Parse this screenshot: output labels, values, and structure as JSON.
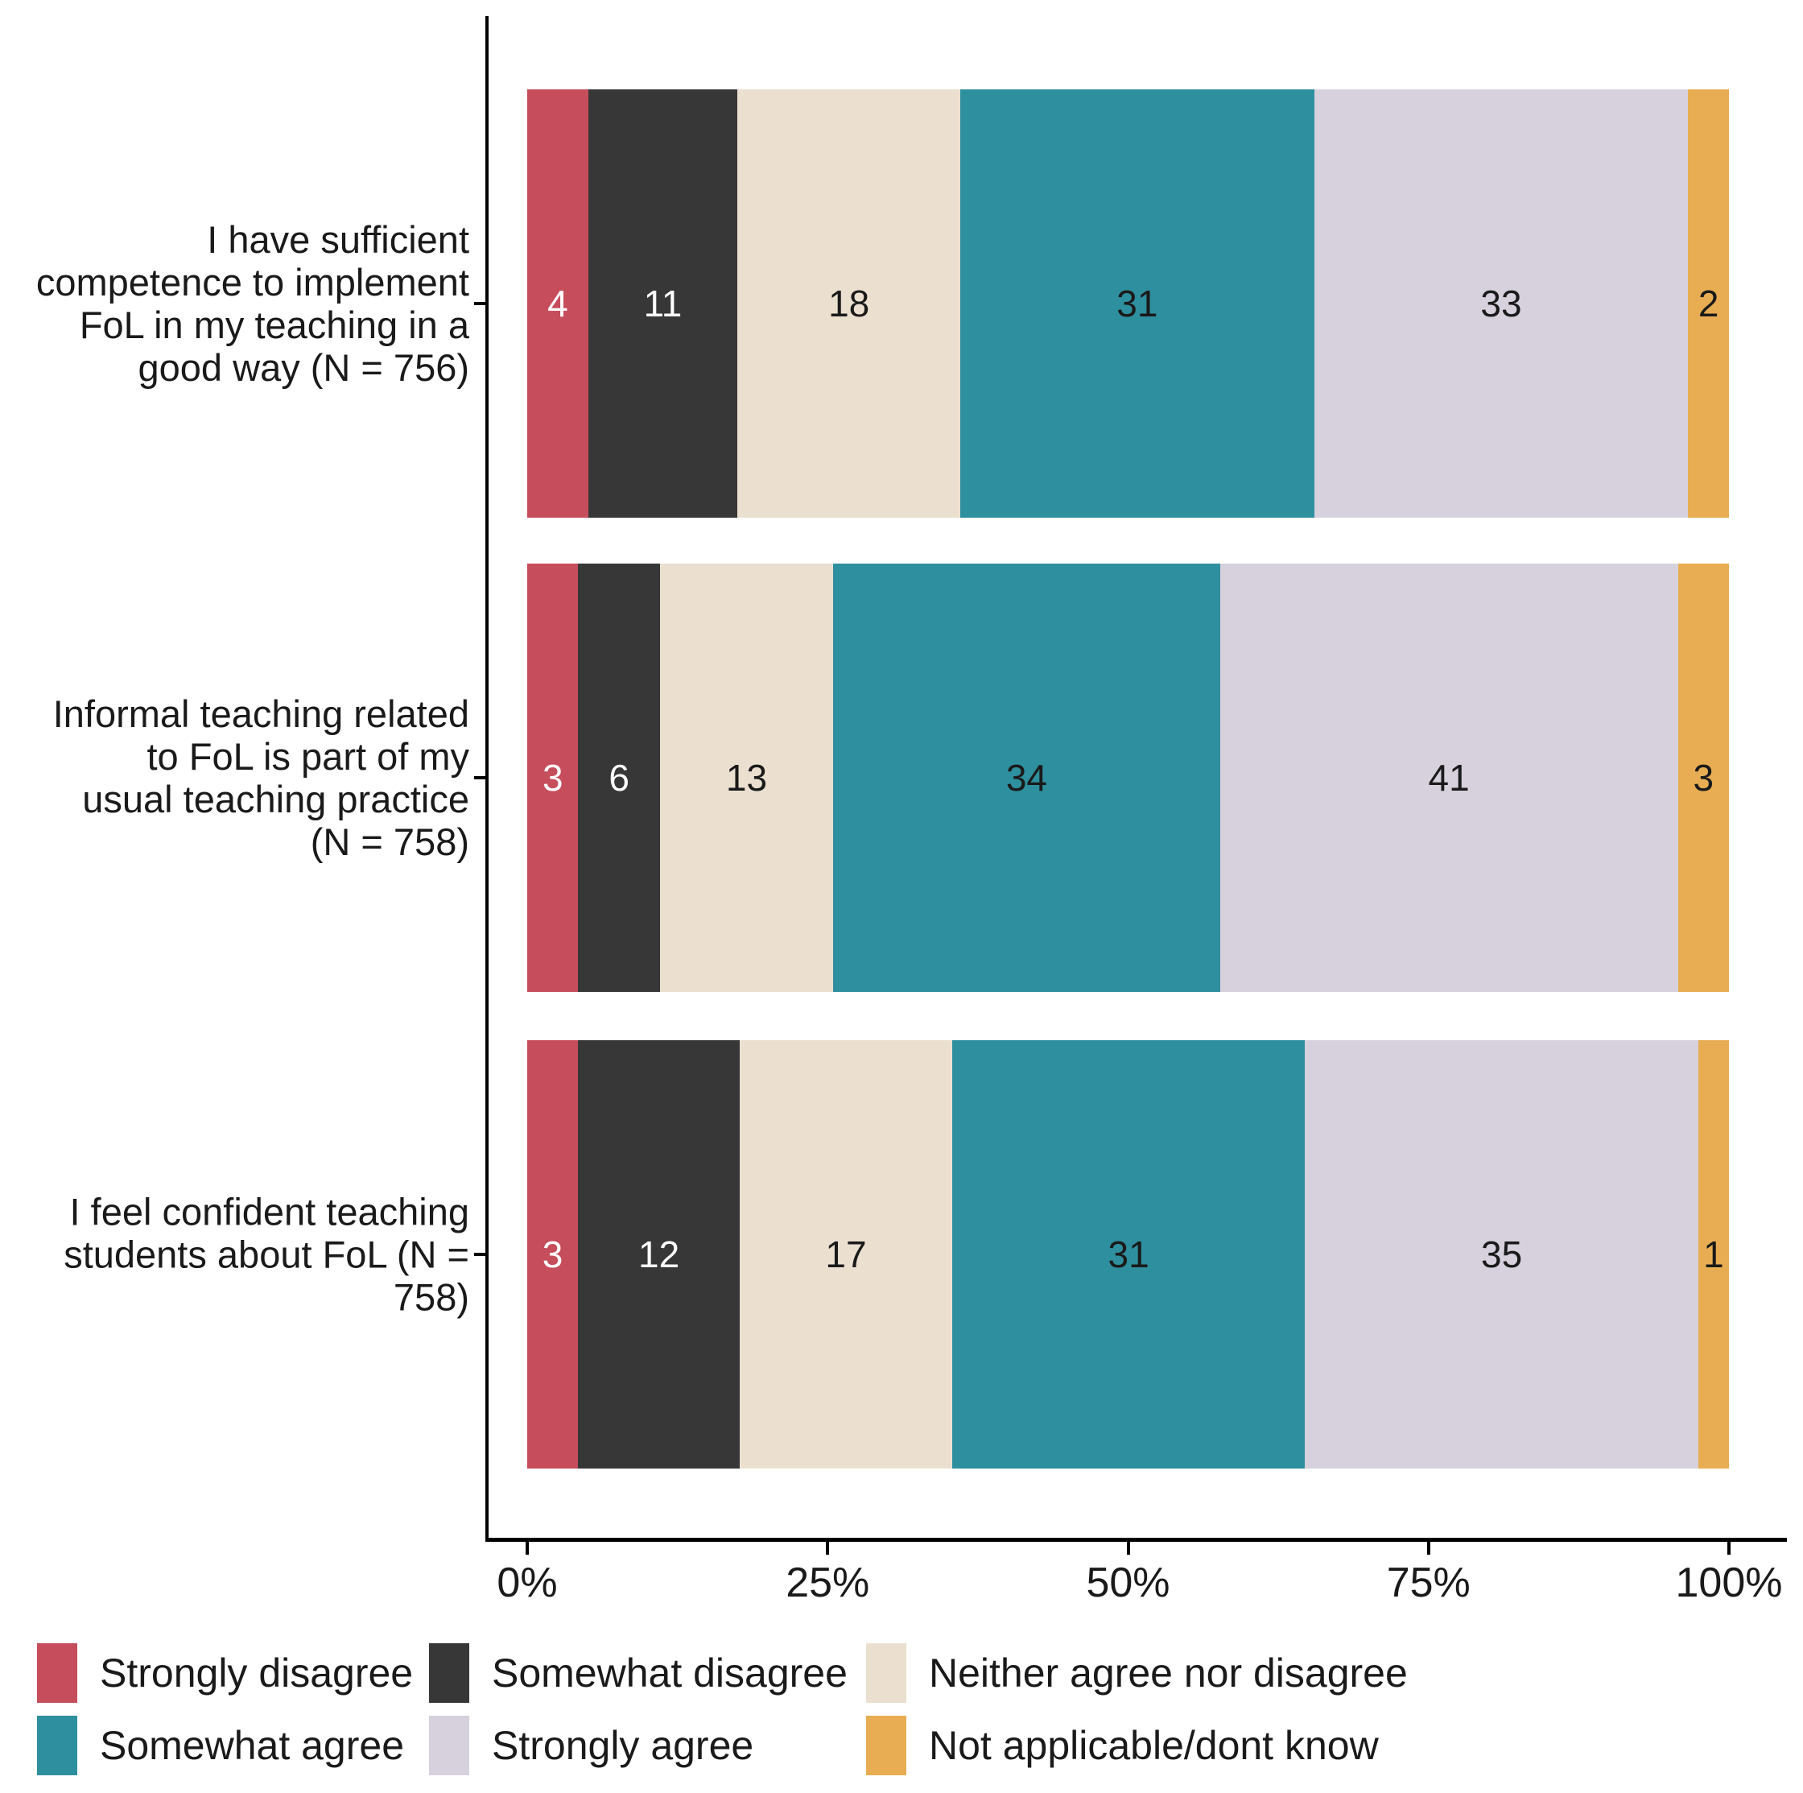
{
  "chart_data": {
    "type": "bar",
    "orientation": "horizontal",
    "stack_mode": "fill-100-percent",
    "title": "",
    "xlabel": "",
    "ylabel": "",
    "grid": false,
    "xlim": [
      0,
      100
    ],
    "x_tick_labels": [
      "0%",
      "25%",
      "50%",
      "75%",
      "100%"
    ],
    "x_tick_positions": [
      0,
      25,
      50,
      75,
      100
    ],
    "legend_position": "bottom",
    "legend_rows": 2,
    "axis_color": "#000000",
    "text_color": "#1a1a1a",
    "categories": [
      "I have sufficient\ncompetence to implement\nFoL in my teaching in a\ngood way (N = 756)",
      "Informal teaching related\nto FoL is part of my\nusual teaching practice\n(N = 758)",
      "I feel confident teaching\nstudents about FoL (N =\n758)"
    ],
    "series": [
      {
        "name": "Strongly disagree",
        "color": "#C64D5B",
        "label_color": "#FFFFFF",
        "values": [
          4,
          3,
          3
        ]
      },
      {
        "name": "Somewhat disagree",
        "color": "#373737",
        "label_color": "#FFFFFF",
        "values": [
          11,
          6,
          12
        ]
      },
      {
        "name": "Neither agree nor disagree",
        "color": "#EBE0D0",
        "label_color": "#1A1A1A",
        "values": [
          18,
          13,
          17
        ]
      },
      {
        "name": "Somewhat agree",
        "color": "#2E8F9E",
        "label_color": "#1A1A1A",
        "values": [
          31,
          34,
          31
        ]
      },
      {
        "name": "Strongly agree",
        "color": "#D6D1DC",
        "label_color": "#1A1A1A",
        "values": [
          33,
          41,
          35
        ]
      },
      {
        "name": "Not applicable/dont know",
        "color": "#E8AD52",
        "label_color": "#1A1A1A",
        "values": [
          2,
          3,
          1
        ]
      }
    ]
  }
}
